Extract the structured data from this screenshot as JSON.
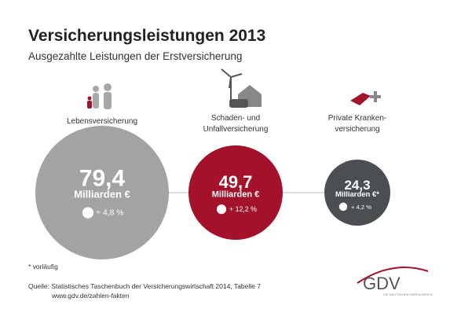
{
  "header": {
    "title": "Versicherungsleistungen 2013",
    "subtitle": "Ausgezahlte Leistungen der Erstversicherung"
  },
  "items": [
    {
      "label": [
        "Lebensversicherung"
      ],
      "value": "79,4",
      "unit": "Milliarden €",
      "change": "+ 4,8 %"
    },
    {
      "label": [
        "Schaden- und",
        "Unfallversicherung"
      ],
      "value": "49,7",
      "unit": "Milliarden €",
      "change": "+ 12,2 %"
    },
    {
      "label": [
        "Private Kranken-",
        "versicherung"
      ],
      "value": "24,3",
      "unit": "Milliarden €*",
      "change": "+ 4,2 %"
    }
  ],
  "footer": {
    "note": "* vorläufig",
    "source": [
      "Quelle: Statistisches Taschenbuch der Versicherungswirtschaft 2014, Tabelle 7",
      "www.gdv.de/zahlen-fakten"
    ]
  },
  "logo": {
    "name": "GDV",
    "tagline": "DIE DEUTSCHEN VERSICHERER"
  }
}
